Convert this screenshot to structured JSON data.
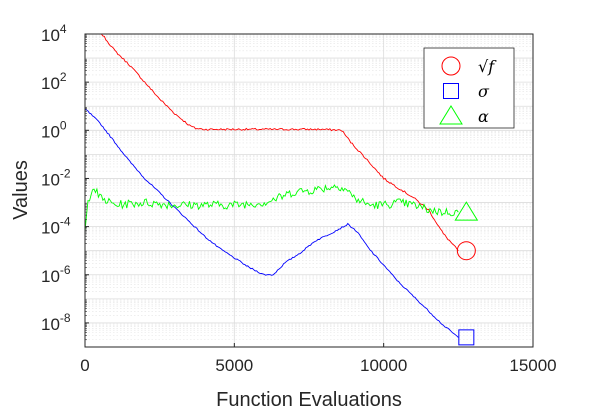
{
  "chart_data": {
    "type": "line",
    "xlabel": "Function Evaluations",
    "ylabel": "Values",
    "xlim": [
      0,
      15000
    ],
    "ylim_log10": [
      -9,
      4
    ],
    "yscale": "log",
    "grid": true,
    "legend_position": "top-right",
    "xticks": [
      "0",
      "5000",
      "10000",
      "15000"
    ],
    "yticks": [
      {
        "base": "10",
        "exp": "4"
      },
      {
        "base": "10",
        "exp": "2"
      },
      {
        "base": "10",
        "exp": "0"
      },
      {
        "base": "10",
        "exp": "-2"
      },
      {
        "base": "10",
        "exp": "-4"
      },
      {
        "base": "10",
        "exp": "-6"
      },
      {
        "base": "10",
        "exp": "-8"
      }
    ],
    "series": [
      {
        "name": "√f",
        "color": "#ff0000",
        "marker": "circle",
        "points_log10": [
          [
            0,
            5.4
          ],
          [
            500,
            4.1
          ],
          [
            1000,
            3.3
          ],
          [
            1500,
            2.7
          ],
          [
            2000,
            2.0
          ],
          [
            2500,
            1.3
          ],
          [
            3000,
            0.7
          ],
          [
            3500,
            0.2
          ],
          [
            3700,
            0.08
          ],
          [
            4000,
            0.04
          ],
          [
            5000,
            0.04
          ],
          [
            6000,
            0.04
          ],
          [
            7000,
            0.04
          ],
          [
            8000,
            0.04
          ],
          [
            8600,
            0.0
          ],
          [
            8900,
            -0.5
          ],
          [
            9500,
            -1.3
          ],
          [
            10000,
            -2.0
          ],
          [
            10500,
            -2.4
          ],
          [
            11000,
            -2.8
          ],
          [
            11500,
            -3.3
          ],
          [
            12000,
            -4.3
          ],
          [
            12500,
            -5.0
          ]
        ],
        "last_point_log10": [
          12500,
          -5.0
        ]
      },
      {
        "name": "σ",
        "color": "#0000ff",
        "marker": "square",
        "points_log10": [
          [
            0,
            0.9
          ],
          [
            500,
            0.3
          ],
          [
            1000,
            -0.5
          ],
          [
            1500,
            -1.3
          ],
          [
            2000,
            -2.0
          ],
          [
            2500,
            -2.6
          ],
          [
            3000,
            -3.2
          ],
          [
            3500,
            -3.8
          ],
          [
            4000,
            -4.4
          ],
          [
            4500,
            -4.9
          ],
          [
            5000,
            -5.3
          ],
          [
            5500,
            -5.7
          ],
          [
            6000,
            -6.0
          ],
          [
            6300,
            -6.0
          ],
          [
            6700,
            -5.5
          ],
          [
            7200,
            -5.1
          ],
          [
            7700,
            -4.6
          ],
          [
            8200,
            -4.3
          ],
          [
            8500,
            -4.1
          ],
          [
            8800,
            -3.9
          ],
          [
            9100,
            -4.2
          ],
          [
            9500,
            -4.9
          ],
          [
            10000,
            -5.6
          ],
          [
            10500,
            -6.3
          ],
          [
            11000,
            -6.9
          ],
          [
            11500,
            -7.5
          ],
          [
            12000,
            -8.1
          ],
          [
            12500,
            -8.6
          ]
        ],
        "last_point_log10": [
          12500,
          -8.6
        ]
      },
      {
        "name": "α",
        "color": "#00ff00",
        "marker": "triangle",
        "points_log10": [
          [
            0,
            -4.2
          ],
          [
            100,
            -3.0
          ],
          [
            250,
            -2.3
          ],
          [
            500,
            -2.8
          ],
          [
            1000,
            -3.1
          ],
          [
            2000,
            -3.0
          ],
          [
            3000,
            -3.1
          ],
          [
            4000,
            -3.1
          ],
          [
            5000,
            -3.1
          ],
          [
            6000,
            -3.0
          ],
          [
            6500,
            -2.8
          ],
          [
            7000,
            -2.55
          ],
          [
            7500,
            -2.5
          ],
          [
            8000,
            -2.4
          ],
          [
            8500,
            -2.3
          ],
          [
            8800,
            -2.5
          ],
          [
            9000,
            -2.8
          ],
          [
            9500,
            -3.1
          ],
          [
            10000,
            -3.1
          ],
          [
            10500,
            -3.0
          ],
          [
            11000,
            -3.1
          ],
          [
            11500,
            -3.3
          ],
          [
            12000,
            -3.4
          ],
          [
            12500,
            -3.4
          ]
        ],
        "last_point_log10": [
          12500,
          -3.4
        ]
      }
    ]
  }
}
